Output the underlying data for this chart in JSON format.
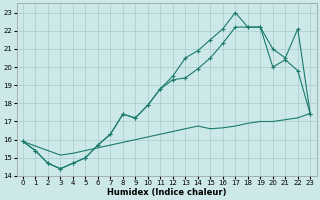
{
  "xlabel": "Humidex (Indice chaleur)",
  "bg_color": "#cce8e8",
  "grid_color": "#aacccc",
  "line_color": "#1a7a6e",
  "xlim": [
    -0.5,
    23.5
  ],
  "ylim": [
    14.0,
    23.5
  ],
  "yticks": [
    14,
    15,
    16,
    17,
    18,
    19,
    20,
    21,
    22,
    23
  ],
  "xticks": [
    0,
    1,
    2,
    3,
    4,
    5,
    6,
    7,
    8,
    9,
    10,
    11,
    12,
    13,
    14,
    15,
    16,
    17,
    18,
    19,
    20,
    21,
    22,
    23
  ],
  "line_diag_x": [
    0,
    1,
    2,
    3,
    4,
    5,
    6,
    7,
    8,
    9,
    10,
    11,
    12,
    13,
    14,
    15,
    16,
    17,
    18,
    19,
    20,
    21,
    22,
    23
  ],
  "line_diag_y": [
    15.9,
    15.65,
    15.4,
    15.15,
    15.25,
    15.4,
    15.55,
    15.7,
    15.85,
    16.0,
    16.15,
    16.3,
    16.45,
    16.6,
    16.75,
    16.6,
    16.65,
    16.75,
    16.9,
    17.0,
    17.0,
    17.1,
    17.2,
    17.45
  ],
  "line_mid_x": [
    0,
    1,
    2,
    3,
    4,
    5,
    6,
    7,
    8,
    9,
    10,
    11,
    12,
    13,
    14,
    15,
    16,
    17,
    18,
    19,
    20,
    21,
    22,
    23
  ],
  "line_mid_y": [
    15.9,
    15.4,
    14.7,
    14.4,
    14.7,
    15.0,
    15.7,
    16.3,
    17.4,
    17.2,
    17.9,
    18.8,
    19.3,
    19.4,
    19.9,
    20.5,
    21.3,
    22.2,
    22.2,
    22.2,
    20.0,
    20.4,
    19.8,
    17.4
  ],
  "line_top_x": [
    0,
    1,
    2,
    3,
    4,
    5,
    6,
    7,
    8,
    9,
    10,
    11,
    12,
    13,
    14,
    15,
    16,
    17,
    18,
    19,
    20,
    21,
    22,
    23
  ],
  "line_top_y": [
    15.9,
    15.4,
    14.7,
    14.4,
    14.7,
    15.0,
    15.7,
    16.3,
    17.4,
    17.2,
    17.9,
    18.8,
    19.5,
    20.5,
    20.9,
    21.5,
    22.1,
    23.0,
    22.2,
    22.2,
    21.0,
    20.5,
    22.1,
    17.4
  ]
}
